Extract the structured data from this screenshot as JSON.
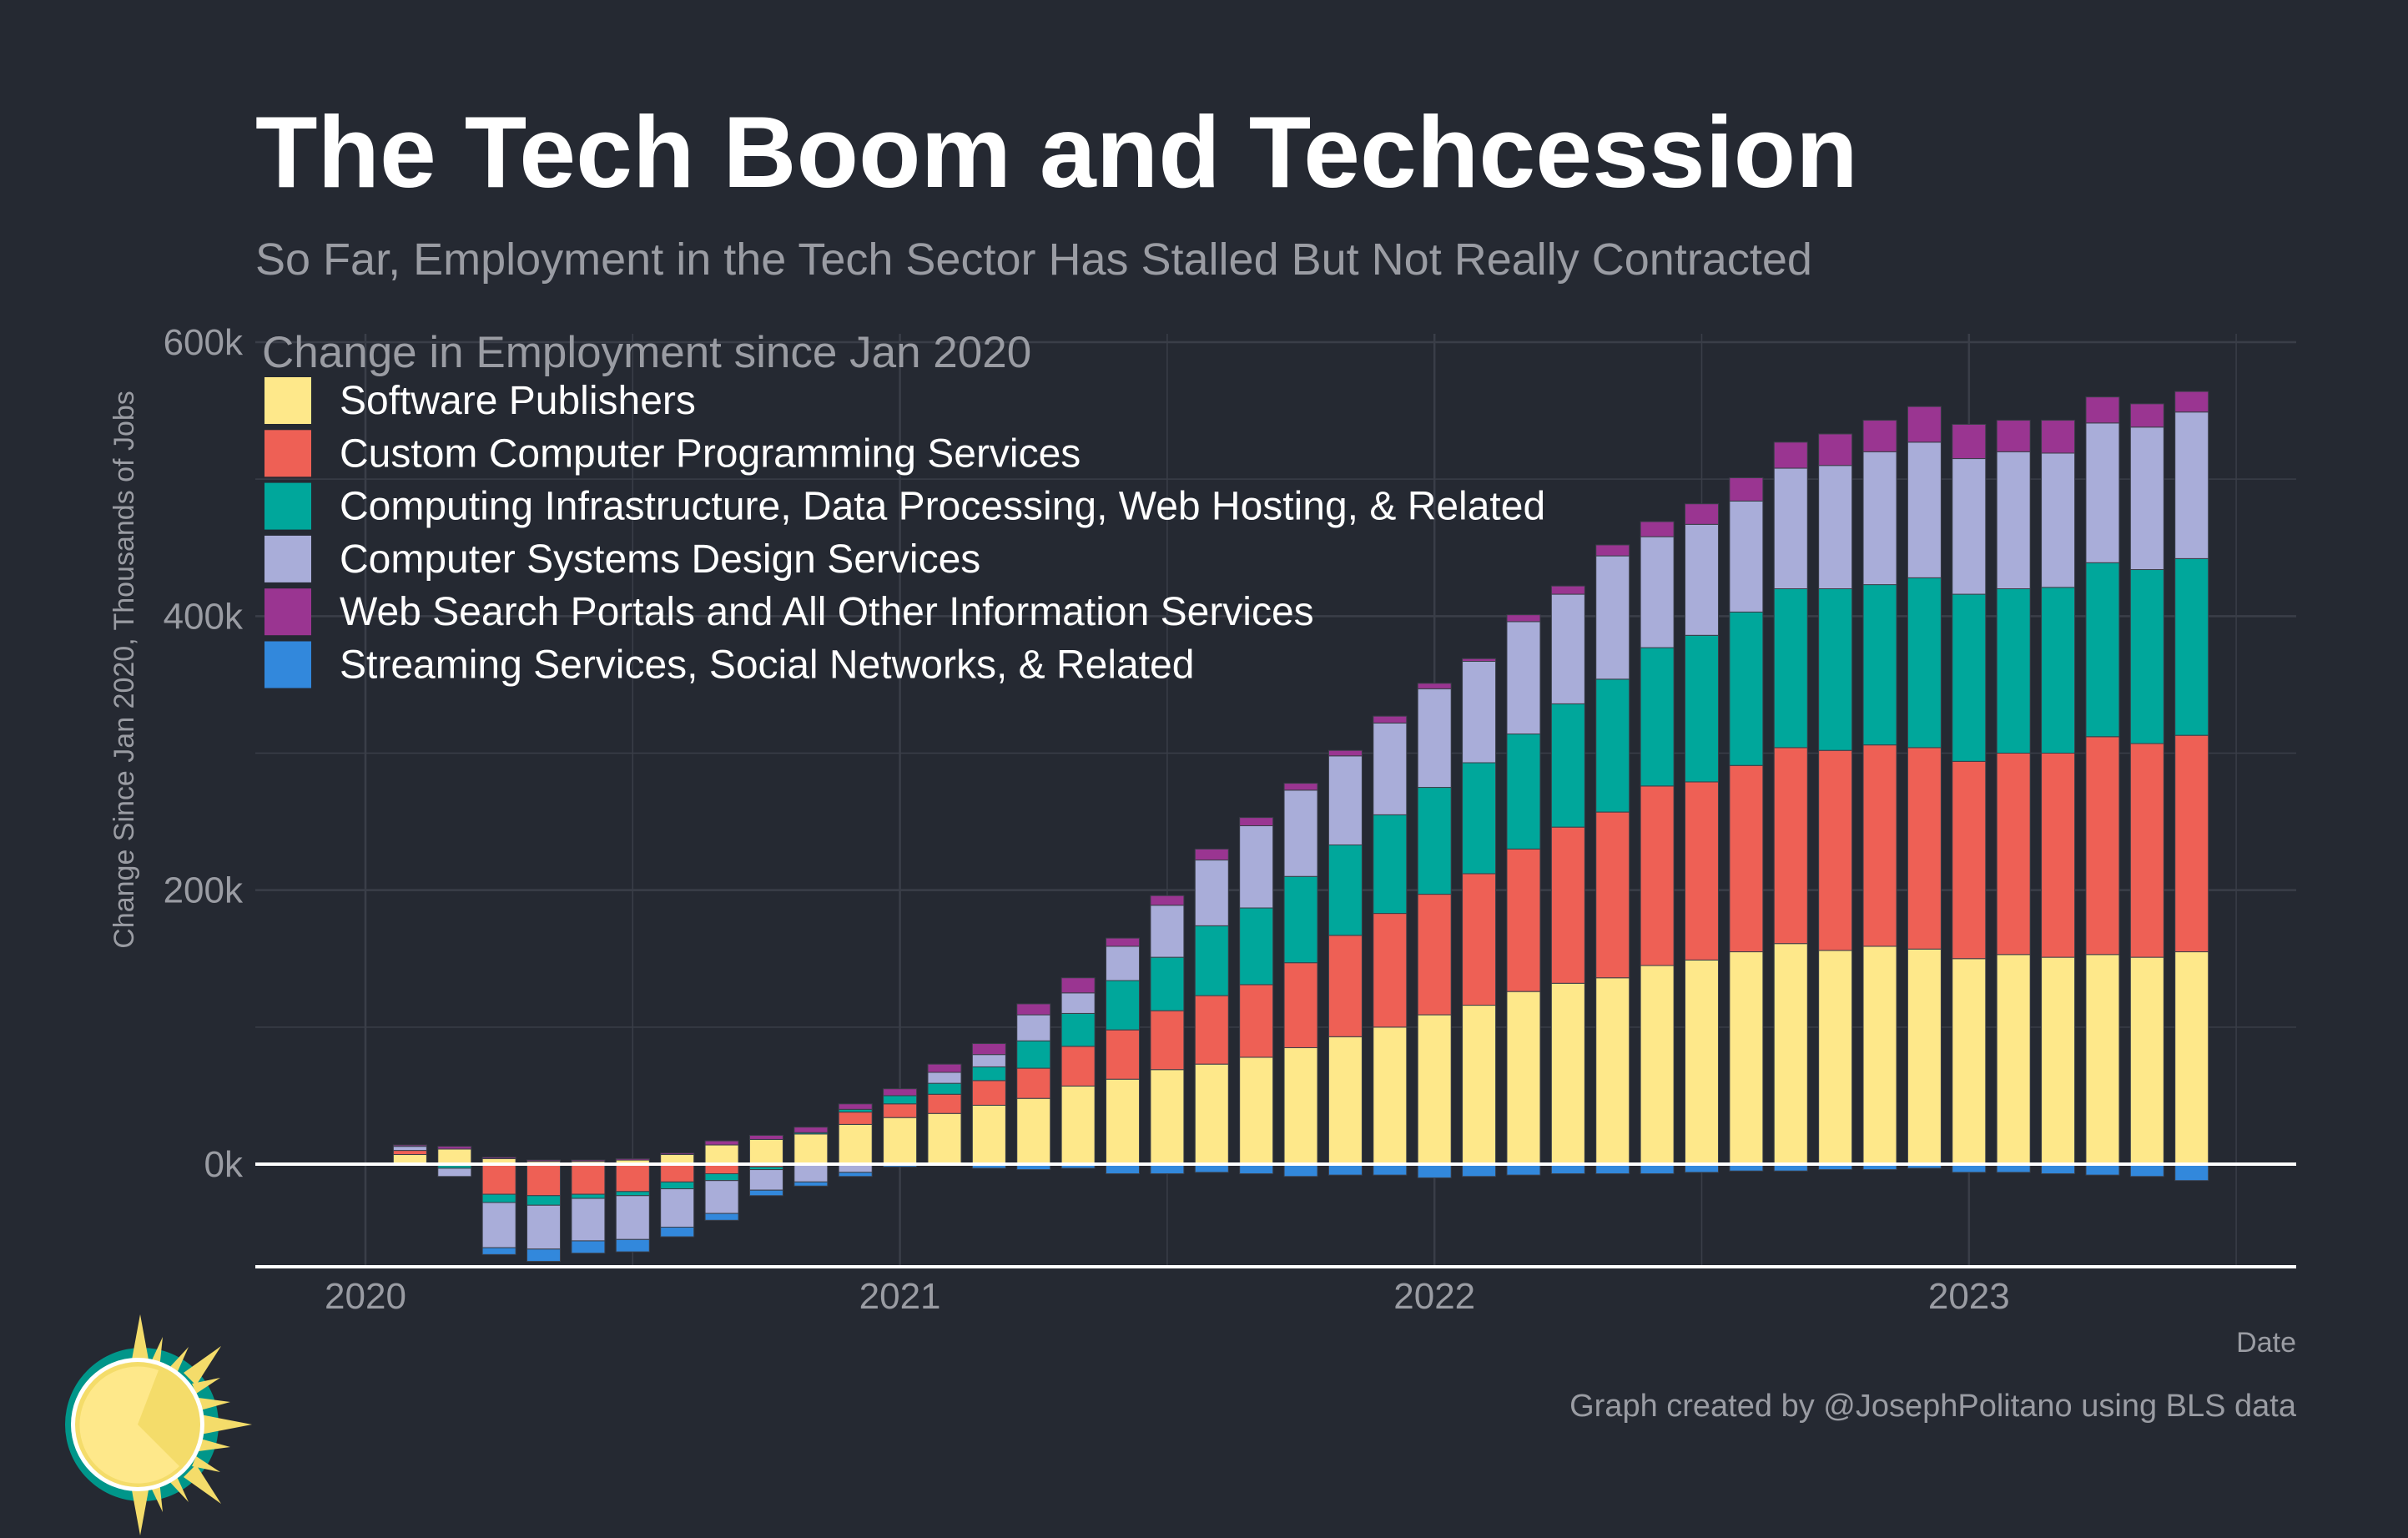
{
  "title": "The Tech Boom and Techcession",
  "subtitle": "So Far, Employment in the Tech Sector Has Stalled But Not Really Contracted",
  "caption": "Graph created by @JosephPolitano using BLS data",
  "logo": {
    "icon": "sun-logo-icon"
  },
  "chart_data": {
    "type": "bar",
    "stacked": true,
    "title": "",
    "xlabel": "Date",
    "ylabel": "Change Since Jan 2020, Thousands of Jobs",
    "legend_title": "Change in Employment since Jan 2020",
    "legend_position": "top-left",
    "grid": true,
    "ylim": [
      -75,
      600
    ],
    "xlim": [
      "2019-10",
      "2023-08"
    ],
    "y_ticks": [
      0,
      200,
      400,
      600
    ],
    "y_tick_labels": [
      "0k",
      "200k",
      "400k",
      "600k"
    ],
    "x_ticks": [
      "2020",
      "2021",
      "2022",
      "2023"
    ],
    "categories": [
      "2020-01",
      "2020-02",
      "2020-03",
      "2020-04",
      "2020-05",
      "2020-06",
      "2020-07",
      "2020-08",
      "2020-09",
      "2020-10",
      "2020-11",
      "2020-12",
      "2021-01",
      "2021-02",
      "2021-03",
      "2021-04",
      "2021-05",
      "2021-06",
      "2021-07",
      "2021-08",
      "2021-09",
      "2021-10",
      "2021-11",
      "2021-12",
      "2022-01",
      "2022-02",
      "2022-03",
      "2022-04",
      "2022-05",
      "2022-06",
      "2022-07",
      "2022-08",
      "2022-09",
      "2022-10",
      "2022-11",
      "2022-12",
      "2023-01",
      "2023-02",
      "2023-03",
      "2023-04",
      "2023-05",
      "2023-06"
    ],
    "series": [
      {
        "name": "Software Publishers",
        "color": "#FEE88A",
        "values": [
          0,
          7,
          11,
          4,
          2,
          2,
          3,
          7,
          14,
          18,
          22,
          29,
          34,
          37,
          43,
          48,
          57,
          62,
          69,
          73,
          78,
          85,
          93,
          100,
          109,
          116,
          126,
          132,
          136,
          145,
          149,
          155,
          161,
          156,
          159,
          157,
          150,
          153,
          151,
          153,
          151,
          155
        ]
      },
      {
        "name": "Custom Computer Programming Services",
        "color": "#EE6055",
        "values": [
          0,
          3,
          -1,
          -22,
          -23,
          -22,
          -20,
          -13,
          -7,
          -2,
          0,
          9,
          10,
          14,
          18,
          22,
          29,
          36,
          43,
          50,
          53,
          62,
          74,
          83,
          88,
          96,
          104,
          114,
          121,
          131,
          130,
          136,
          143,
          146,
          147,
          147,
          144,
          147,
          149,
          159,
          156,
          158
        ]
      },
      {
        "name": "Computing Infrastructure, Data Processing, Web Hosting, & Related",
        "color": "#00A79B",
        "values": [
          0,
          -1,
          -2,
          -6,
          -7,
          -3,
          -3,
          -5,
          -5,
          -2,
          1,
          2,
          6,
          8,
          10,
          20,
          24,
          36,
          39,
          51,
          56,
          63,
          66,
          72,
          78,
          81,
          84,
          90,
          97,
          101,
          107,
          112,
          116,
          118,
          117,
          124,
          122,
          120,
          121,
          127,
          127,
          129
        ]
      },
      {
        "name": "Computer Systems Design Services",
        "color": "#A9ADD9",
        "values": [
          0,
          3,
          -6,
          -33,
          -32,
          -31,
          -32,
          -28,
          -24,
          -15,
          -13,
          -6,
          0,
          8,
          9,
          19,
          15,
          25,
          38,
          48,
          60,
          63,
          65,
          67,
          72,
          74,
          82,
          80,
          90,
          81,
          81,
          81,
          88,
          90,
          97,
          99,
          99,
          100,
          98,
          102,
          104,
          107
        ]
      },
      {
        "name": "Web Search Portals and All Other Information Services",
        "color": "#9A3591",
        "values": [
          0,
          1,
          2,
          1,
          1,
          1,
          1,
          1,
          3,
          3,
          4,
          4,
          5,
          6,
          8,
          8,
          11,
          6,
          7,
          8,
          6,
          5,
          4,
          5,
          4,
          2,
          5,
          6,
          8,
          11,
          15,
          17,
          19,
          23,
          23,
          26,
          25,
          23,
          24,
          19,
          17,
          15
        ]
      },
      {
        "name": "Streaming Services, Social Networks, & Related",
        "color": "#3288DC",
        "values": [
          0,
          0,
          0,
          -5,
          -9,
          -9,
          -9,
          -7,
          -5,
          -4,
          -3,
          -3,
          -2,
          -1,
          -3,
          -4,
          -3,
          -7,
          -7,
          -6,
          -7,
          -9,
          -8,
          -8,
          -10,
          -9,
          -8,
          -7,
          -7,
          -7,
          -6,
          -5,
          -5,
          -4,
          -4,
          -3,
          -6,
          -6,
          -7,
          -8,
          -9,
          -12
        ]
      }
    ]
  },
  "colors": {
    "background": "#252932",
    "grid": "#3a3e48",
    "text_muted": "#9a9ca3"
  }
}
